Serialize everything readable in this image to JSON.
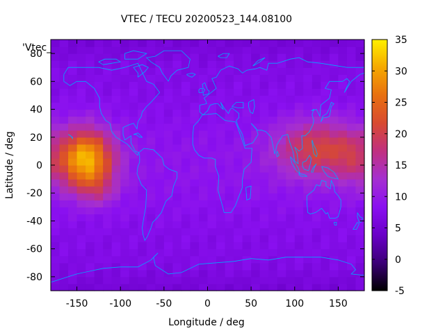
{
  "chart_data": {
    "type": "heatmap",
    "title": "VTEC / TECU 20200523_144.08100",
    "key_label": "'Vtec_",
    "xlabel": "Longitude / deg",
    "ylabel": "Latitude / deg",
    "xlim": [
      -180,
      180
    ],
    "ylim": [
      -90,
      90
    ],
    "x_ticks": [
      -150,
      -100,
      -50,
      0,
      50,
      100,
      150
    ],
    "y_ticks": [
      -80,
      -60,
      -40,
      -20,
      0,
      20,
      40,
      60,
      80
    ],
    "colorbar": {
      "range": [
        -5,
        35
      ],
      "ticks": [
        -5,
        0,
        5,
        10,
        15,
        20,
        25,
        30,
        35
      ],
      "palette": [
        "#000000",
        "#3c0078",
        "#6a00c8",
        "#8a10f0",
        "#a52fd0",
        "#c03080",
        "#d84a30",
        "#e87010",
        "#f5a800",
        "#fff000"
      ]
    },
    "coastline_color": "#00aaff",
    "grid": false,
    "cell_size_deg": [
      10,
      5
    ],
    "background_vtec": 7,
    "enhancements": [
      {
        "region": "Pacific crest",
        "lon": -140,
        "lat": 5,
        "peak_vtec": 32
      },
      {
        "region": "SE Asia crest",
        "lon": 120,
        "lat": 10,
        "peak_vtec": 22
      }
    ]
  }
}
